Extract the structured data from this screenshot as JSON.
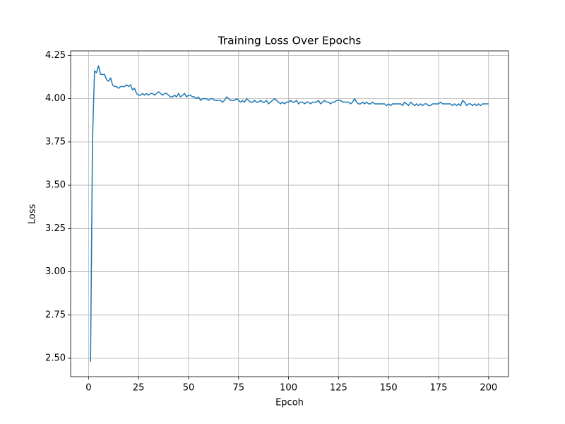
{
  "chart_data": {
    "type": "line",
    "title": "Training Loss Over Epochs",
    "xlabel": "Epcoh",
    "ylabel": "Loss",
    "x": [
      1,
      2,
      3,
      4,
      5,
      6,
      7,
      8,
      9,
      10,
      11,
      12,
      13,
      14,
      15,
      16,
      17,
      18,
      19,
      20,
      21,
      22,
      23,
      24,
      25,
      26,
      27,
      28,
      29,
      30,
      31,
      32,
      33,
      34,
      35,
      36,
      37,
      38,
      39,
      40,
      41,
      42,
      43,
      44,
      45,
      46,
      47,
      48,
      49,
      50,
      51,
      52,
      53,
      54,
      55,
      56,
      57,
      58,
      59,
      60,
      61,
      62,
      63,
      64,
      65,
      66,
      67,
      68,
      69,
      70,
      71,
      72,
      73,
      74,
      75,
      76,
      77,
      78,
      79,
      80,
      81,
      82,
      83,
      84,
      85,
      86,
      87,
      88,
      89,
      90,
      91,
      92,
      93,
      94,
      95,
      96,
      97,
      98,
      99,
      100,
      101,
      102,
      103,
      104,
      105,
      106,
      107,
      108,
      109,
      110,
      111,
      112,
      113,
      114,
      115,
      116,
      117,
      118,
      119,
      120,
      121,
      122,
      123,
      124,
      125,
      126,
      127,
      128,
      129,
      130,
      131,
      132,
      133,
      134,
      135,
      136,
      137,
      138,
      139,
      140,
      141,
      142,
      143,
      144,
      145,
      146,
      147,
      148,
      149,
      150,
      151,
      152,
      153,
      154,
      155,
      156,
      157,
      158,
      159,
      160,
      161,
      162,
      163,
      164,
      165,
      166,
      167,
      168,
      169,
      170,
      171,
      172,
      173,
      174,
      175,
      176,
      177,
      178,
      179,
      180,
      181,
      182,
      183,
      184,
      185,
      186,
      187,
      188,
      189,
      190,
      191,
      192,
      193,
      194,
      195,
      196,
      197,
      198,
      199,
      200
    ],
    "series": [
      {
        "name": "Loss",
        "color": "#1f77b4",
        "values": [
          2.48,
          3.77,
          4.16,
          4.15,
          4.19,
          4.14,
          4.14,
          4.14,
          4.11,
          4.1,
          4.12,
          4.08,
          4.07,
          4.07,
          4.06,
          4.07,
          4.07,
          4.07,
          4.08,
          4.07,
          4.08,
          4.05,
          4.06,
          4.03,
          4.02,
          4.02,
          4.03,
          4.02,
          4.03,
          4.02,
          4.03,
          4.03,
          4.02,
          4.03,
          4.04,
          4.03,
          4.02,
          4.03,
          4.03,
          4.02,
          4.01,
          4.01,
          4.02,
          4.01,
          4.03,
          4.01,
          4.02,
          4.03,
          4.01,
          4.02,
          4.02,
          4.01,
          4.01,
          4.0,
          4.01,
          3.99,
          4.0,
          4.0,
          4.0,
          3.99,
          4.0,
          4.0,
          3.99,
          3.99,
          3.99,
          3.99,
          3.98,
          3.99,
          4.01,
          4.0,
          3.99,
          3.99,
          3.99,
          4.0,
          3.99,
          3.98,
          3.99,
          3.98,
          4.0,
          3.99,
          3.98,
          3.98,
          3.99,
          3.98,
          3.98,
          3.99,
          3.98,
          3.98,
          3.99,
          3.97,
          3.98,
          3.99,
          4.0,
          3.99,
          3.98,
          3.97,
          3.98,
          3.97,
          3.98,
          3.98,
          3.99,
          3.98,
          3.98,
          3.99,
          3.97,
          3.98,
          3.98,
          3.97,
          3.98,
          3.98,
          3.97,
          3.98,
          3.98,
          3.98,
          3.99,
          3.97,
          3.98,
          3.99,
          3.98,
          3.98,
          3.97,
          3.98,
          3.98,
          3.99,
          3.99,
          3.99,
          3.98,
          3.98,
          3.98,
          3.98,
          3.97,
          3.98,
          4.0,
          3.98,
          3.97,
          3.97,
          3.98,
          3.97,
          3.98,
          3.97,
          3.97,
          3.98,
          3.97,
          3.97,
          3.97,
          3.97,
          3.97,
          3.97,
          3.96,
          3.97,
          3.96,
          3.97,
          3.97,
          3.97,
          3.97,
          3.97,
          3.96,
          3.98,
          3.97,
          3.96,
          3.98,
          3.97,
          3.96,
          3.97,
          3.96,
          3.97,
          3.96,
          3.97,
          3.97,
          3.96,
          3.96,
          3.97,
          3.97,
          3.97,
          3.97,
          3.98,
          3.97,
          3.97,
          3.97,
          3.97,
          3.97,
          3.96,
          3.97,
          3.96,
          3.97,
          3.96,
          3.99,
          3.98,
          3.96,
          3.97,
          3.97,
          3.96,
          3.97,
          3.96,
          3.97,
          3.96,
          3.97,
          3.97,
          3.97,
          3.97
        ]
      }
    ],
    "xlim": [
      -8.95,
      209.95
    ],
    "ylim": [
      2.394,
      4.276
    ],
    "xticks": [
      0,
      25,
      50,
      75,
      100,
      125,
      150,
      175,
      200
    ],
    "yticks": [
      {
        "value": 2.5,
        "label": "2.50"
      },
      2.75,
      {
        "value": 3.0,
        "label": "3.00"
      },
      3.25,
      {
        "value": 3.5,
        "label": "3.50"
      },
      3.75,
      {
        "value": 4.0,
        "label": "4.00"
      },
      4.25
    ],
    "grid": true
  }
}
